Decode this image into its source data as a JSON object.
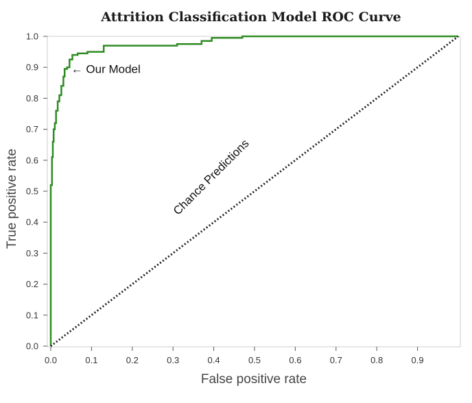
{
  "chart_data": {
    "type": "line",
    "title": "Attrition Classification Model ROC Curve",
    "xlabel": "False positive rate",
    "ylabel": "True positive rate",
    "xlim": [
      0.0,
      1.0
    ],
    "ylim": [
      0.0,
      1.0
    ],
    "x_ticks": [
      "0.0",
      "0.1",
      "0.2",
      "0.3",
      "0.4",
      "0.5",
      "0.6",
      "0.7",
      "0.8",
      "0.9"
    ],
    "y_ticks": [
      "0.0",
      "0.1",
      "0.2",
      "0.3",
      "0.4",
      "0.5",
      "0.6",
      "0.7",
      "0.8",
      "0.9",
      "1.0"
    ],
    "grid": false,
    "series": [
      {
        "name": "Our Model",
        "color": "#2e8b22",
        "style": "solid",
        "x": [
          0.0,
          0.0,
          0.003,
          0.003,
          0.005,
          0.005,
          0.007,
          0.007,
          0.01,
          0.01,
          0.013,
          0.013,
          0.017,
          0.017,
          0.021,
          0.021,
          0.026,
          0.026,
          0.031,
          0.031,
          0.034,
          0.034,
          0.04,
          0.04,
          0.046,
          0.046,
          0.053,
          0.053,
          0.066,
          0.066,
          0.09,
          0.09,
          0.13,
          0.13,
          0.31,
          0.31,
          0.37,
          0.37,
          0.395,
          0.395,
          0.47,
          0.47,
          1.0
        ],
        "y": [
          0.0,
          0.52,
          0.52,
          0.61,
          0.61,
          0.66,
          0.66,
          0.7,
          0.7,
          0.72,
          0.72,
          0.76,
          0.76,
          0.79,
          0.79,
          0.81,
          0.81,
          0.84,
          0.84,
          0.87,
          0.87,
          0.895,
          0.895,
          0.9,
          0.9,
          0.925,
          0.925,
          0.94,
          0.94,
          0.945,
          0.945,
          0.95,
          0.95,
          0.97,
          0.97,
          0.975,
          0.975,
          0.985,
          0.985,
          0.995,
          0.995,
          1.0,
          1.0
        ]
      },
      {
        "name": "Chance Predictions",
        "color": "#222222",
        "style": "dotted",
        "x": [
          0.0,
          1.0
        ],
        "y": [
          0.0,
          1.0
        ]
      }
    ],
    "annotations": [
      {
        "text": "← Our Model",
        "x": 0.05,
        "y": 0.895
      },
      {
        "text": "Chance Predictions",
        "x": 0.4,
        "y": 0.55,
        "rotation": -45
      }
    ]
  }
}
